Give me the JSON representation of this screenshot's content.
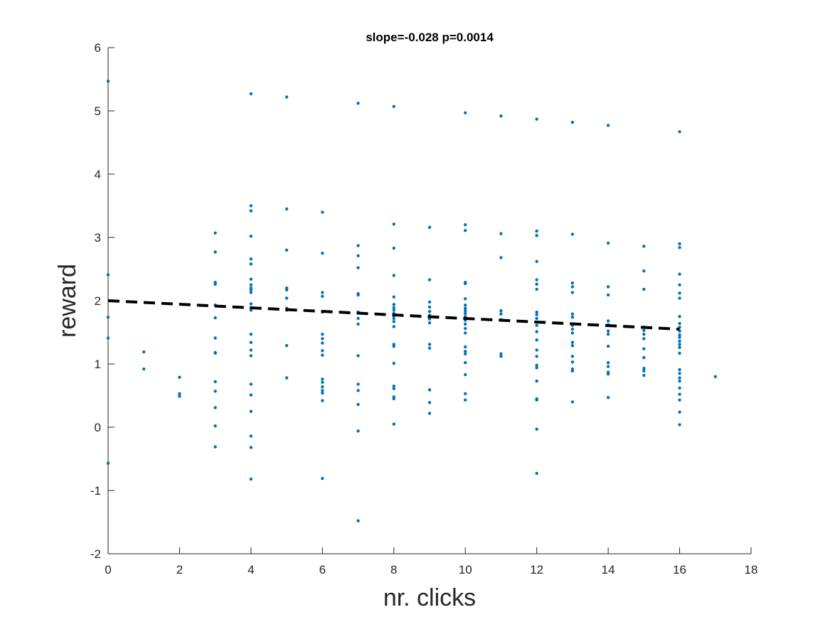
{
  "chart_data": {
    "type": "scatter",
    "title": "slope=-0.028 p=0.0014",
    "xlabel": "nr. clicks",
    "ylabel": "reward",
    "xlim": [
      0,
      18
    ],
    "ylim": [
      -2,
      6
    ],
    "xticks": [
      0,
      2,
      4,
      6,
      8,
      10,
      12,
      14,
      16,
      18
    ],
    "yticks": [
      -2,
      -1,
      0,
      1,
      2,
      3,
      4,
      5,
      6
    ],
    "grid": false,
    "colors": {
      "points": "#0072BD",
      "fit_line": "#000000",
      "axis": "#262626"
    },
    "series": [
      {
        "points": [
          [
            0,
            5.47
          ],
          [
            0,
            2.41
          ],
          [
            0,
            1.74
          ],
          [
            0,
            1.41
          ],
          [
            0,
            -0.57
          ],
          [
            1,
            1.19
          ],
          [
            1,
            0.92
          ],
          [
            2,
            0.79
          ],
          [
            2,
            0.53
          ],
          [
            2,
            0.49
          ],
          [
            3,
            3.07
          ],
          [
            3,
            2.77
          ],
          [
            3,
            2.29
          ],
          [
            3,
            2.26
          ],
          [
            3,
            1.93
          ],
          [
            3,
            1.73
          ],
          [
            3,
            1.41
          ],
          [
            3,
            1.18
          ],
          [
            3,
            1.17
          ],
          [
            3,
            0.72
          ],
          [
            3,
            0.57
          ],
          [
            3,
            0.31
          ],
          [
            3,
            0.02
          ],
          [
            3,
            -0.31
          ],
          [
            4,
            5.27
          ],
          [
            4,
            3.5
          ],
          [
            4,
            3.42
          ],
          [
            4,
            3.02
          ],
          [
            4,
            2.66
          ],
          [
            4,
            2.58
          ],
          [
            4,
            2.34
          ],
          [
            4,
            2.25
          ],
          [
            4,
            2.2
          ],
          [
            4,
            2.17
          ],
          [
            4,
            2.13
          ],
          [
            4,
            1.95
          ],
          [
            4,
            1.89
          ],
          [
            4,
            1.85
          ],
          [
            4,
            1.47
          ],
          [
            4,
            1.34
          ],
          [
            4,
            1.22
          ],
          [
            4,
            1.13
          ],
          [
            4,
            0.68
          ],
          [
            4,
            0.51
          ],
          [
            4,
            0.25
          ],
          [
            4,
            -0.14
          ],
          [
            4,
            -0.32
          ],
          [
            4,
            -0.82
          ],
          [
            5,
            5.22
          ],
          [
            5,
            3.45
          ],
          [
            5,
            2.8
          ],
          [
            5,
            2.2
          ],
          [
            5,
            2.17
          ],
          [
            5,
            2.04
          ],
          [
            5,
            1.88
          ],
          [
            5,
            1.85
          ],
          [
            5,
            1.29
          ],
          [
            5,
            0.78
          ],
          [
            6,
            3.4
          ],
          [
            6,
            2.75
          ],
          [
            6,
            2.13
          ],
          [
            6,
            2.07
          ],
          [
            6,
            1.82
          ],
          [
            6,
            1.47
          ],
          [
            6,
            1.4
          ],
          [
            6,
            1.33
          ],
          [
            6,
            1.21
          ],
          [
            6,
            1.14
          ],
          [
            6,
            0.76
          ],
          [
            6,
            0.71
          ],
          [
            6,
            0.64
          ],
          [
            6,
            0.58
          ],
          [
            6,
            0.54
          ],
          [
            6,
            0.42
          ],
          [
            6,
            -0.81
          ],
          [
            7,
            5.12
          ],
          [
            7,
            2.87
          ],
          [
            7,
            2.71
          ],
          [
            7,
            2.52
          ],
          [
            7,
            2.11
          ],
          [
            7,
            2.09
          ],
          [
            7,
            1.82
          ],
          [
            7,
            1.72
          ],
          [
            7,
            1.63
          ],
          [
            7,
            1.13
          ],
          [
            7,
            0.68
          ],
          [
            7,
            0.58
          ],
          [
            7,
            0.36
          ],
          [
            7,
            -0.06
          ],
          [
            7,
            -1.48
          ],
          [
            8,
            5.07
          ],
          [
            8,
            3.21
          ],
          [
            8,
            2.83
          ],
          [
            8,
            2.4
          ],
          [
            8,
            2.06
          ],
          [
            8,
            1.94
          ],
          [
            8,
            1.89
          ],
          [
            8,
            1.85
          ],
          [
            8,
            1.8
          ],
          [
            8,
            1.76
          ],
          [
            8,
            1.72
          ],
          [
            8,
            1.67
          ],
          [
            8,
            1.59
          ],
          [
            8,
            1.31
          ],
          [
            8,
            1.28
          ],
          [
            8,
            1.01
          ],
          [
            8,
            0.65
          ],
          [
            8,
            0.61
          ],
          [
            8,
            0.48
          ],
          [
            8,
            0.45
          ],
          [
            8,
            0.05
          ],
          [
            9,
            3.16
          ],
          [
            9,
            2.33
          ],
          [
            9,
            1.98
          ],
          [
            9,
            1.9
          ],
          [
            9,
            1.83
          ],
          [
            9,
            1.77
          ],
          [
            9,
            1.71
          ],
          [
            9,
            1.65
          ],
          [
            9,
            1.31
          ],
          [
            9,
            1.25
          ],
          [
            9,
            0.59
          ],
          [
            9,
            0.39
          ],
          [
            9,
            0.22
          ],
          [
            10,
            4.97
          ],
          [
            10,
            3.2
          ],
          [
            10,
            3.11
          ],
          [
            10,
            2.29
          ],
          [
            10,
            2.27
          ],
          [
            10,
            2.03
          ],
          [
            10,
            1.93
          ],
          [
            10,
            1.88
          ],
          [
            10,
            1.84
          ],
          [
            10,
            1.8
          ],
          [
            10,
            1.75
          ],
          [
            10,
            1.69
          ],
          [
            10,
            1.63
          ],
          [
            10,
            1.56
          ],
          [
            10,
            1.49
          ],
          [
            10,
            1.27
          ],
          [
            10,
            1.2
          ],
          [
            10,
            1.16
          ],
          [
            10,
            1.02
          ],
          [
            10,
            0.83
          ],
          [
            10,
            0.53
          ],
          [
            10,
            0.43
          ],
          [
            11,
            4.92
          ],
          [
            11,
            3.06
          ],
          [
            11,
            2.68
          ],
          [
            11,
            1.84
          ],
          [
            11,
            1.79
          ],
          [
            11,
            1.7
          ],
          [
            11,
            1.16
          ],
          [
            11,
            1.12
          ],
          [
            12,
            4.87
          ],
          [
            12,
            3.1
          ],
          [
            12,
            3.03
          ],
          [
            12,
            2.62
          ],
          [
            12,
            2.33
          ],
          [
            12,
            2.26
          ],
          [
            12,
            2.18
          ],
          [
            12,
            1.82
          ],
          [
            12,
            1.78
          ],
          [
            12,
            1.72
          ],
          [
            12,
            1.61
          ],
          [
            12,
            1.51
          ],
          [
            12,
            1.38
          ],
          [
            12,
            1.22
          ],
          [
            12,
            1.12
          ],
          [
            12,
            0.98
          ],
          [
            12,
            0.94
          ],
          [
            12,
            0.73
          ],
          [
            12,
            0.45
          ],
          [
            12,
            0.43
          ],
          [
            12,
            -0.03
          ],
          [
            12,
            -0.73
          ],
          [
            13,
            4.82
          ],
          [
            13,
            3.05
          ],
          [
            13,
            2.28
          ],
          [
            13,
            2.22
          ],
          [
            13,
            2.13
          ],
          [
            13,
            1.79
          ],
          [
            13,
            1.74
          ],
          [
            13,
            1.61
          ],
          [
            13,
            1.55
          ],
          [
            13,
            1.49
          ],
          [
            13,
            1.34
          ],
          [
            13,
            1.29
          ],
          [
            13,
            1.12
          ],
          [
            13,
            1.03
          ],
          [
            13,
            0.92
          ],
          [
            13,
            0.89
          ],
          [
            13,
            0.4
          ],
          [
            14,
            4.77
          ],
          [
            14,
            2.91
          ],
          [
            14,
            2.22
          ],
          [
            14,
            2.09
          ],
          [
            14,
            1.68
          ],
          [
            14,
            1.62
          ],
          [
            14,
            1.52
          ],
          [
            14,
            1.47
          ],
          [
            14,
            1.28
          ],
          [
            14,
            1.02
          ],
          [
            14,
            0.96
          ],
          [
            14,
            0.87
          ],
          [
            14,
            0.84
          ],
          [
            14,
            0.47
          ],
          [
            15,
            2.86
          ],
          [
            15,
            2.47
          ],
          [
            15,
            2.18
          ],
          [
            15,
            1.58
          ],
          [
            15,
            1.53
          ],
          [
            15,
            1.47
          ],
          [
            15,
            1.4
          ],
          [
            15,
            1.24
          ],
          [
            15,
            1.1
          ],
          [
            15,
            0.93
          ],
          [
            15,
            0.89
          ],
          [
            15,
            0.82
          ],
          [
            16,
            4.67
          ],
          [
            16,
            2.9
          ],
          [
            16,
            2.84
          ],
          [
            16,
            2.42
          ],
          [
            16,
            2.25
          ],
          [
            16,
            2.12
          ],
          [
            16,
            2.04
          ],
          [
            16,
            1.75
          ],
          [
            16,
            1.64
          ],
          [
            16,
            1.58
          ],
          [
            16,
            1.52
          ],
          [
            16,
            1.46
          ],
          [
            16,
            1.42
          ],
          [
            16,
            1.36
          ],
          [
            16,
            1.31
          ],
          [
            16,
            1.26
          ],
          [
            16,
            1.17
          ],
          [
            16,
            0.91
          ],
          [
            16,
            0.85
          ],
          [
            16,
            0.78
          ],
          [
            16,
            0.73
          ],
          [
            16,
            0.62
          ],
          [
            16,
            0.52
          ],
          [
            16,
            0.43
          ],
          [
            16,
            0.24
          ],
          [
            16,
            0.04
          ],
          [
            17,
            0.8
          ]
        ]
      }
    ],
    "fit_line": {
      "style": "dashed",
      "x": [
        0,
        16
      ],
      "y": [
        2.0,
        1.55
      ]
    }
  }
}
